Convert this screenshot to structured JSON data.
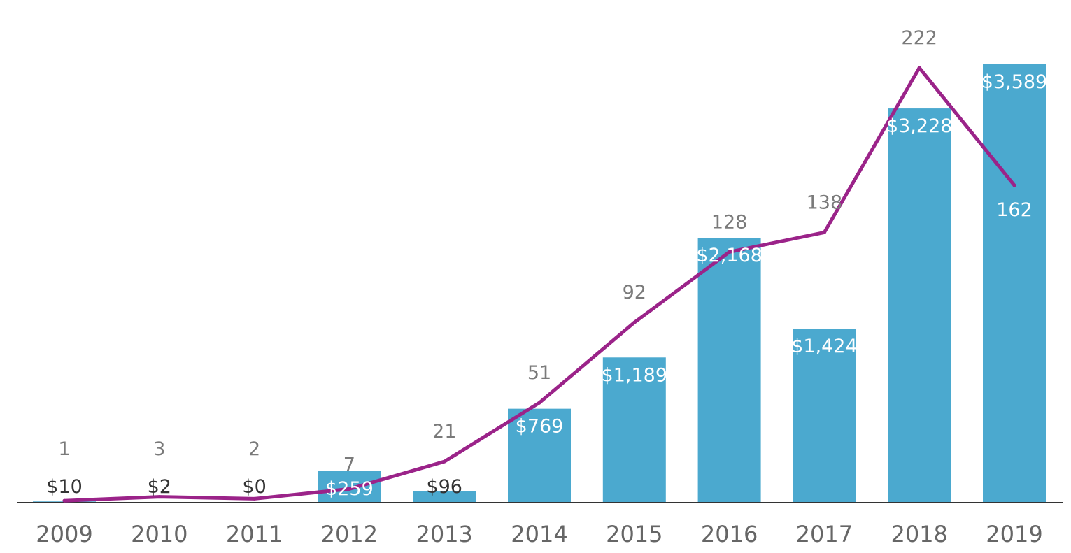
{
  "chart_data": {
    "type": "bar",
    "categories": [
      "2009",
      "2010",
      "2011",
      "2012",
      "2013",
      "2014",
      "2015",
      "2016",
      "2017",
      "2018",
      "2019"
    ],
    "series": [
      {
        "type": "bar",
        "values": [
          10,
          2,
          0,
          259,
          96,
          769,
          1189,
          2168,
          1424,
          3228,
          3589
        ],
        "data_labels": [
          "$10",
          "$2",
          "$0",
          "$259",
          "$96",
          "$769",
          "$1,189",
          "$2,168",
          "$1,424",
          "$3,228",
          "$3,589"
        ],
        "color": "#4ba9cf"
      },
      {
        "type": "line",
        "values": [
          1,
          3,
          2,
          7,
          21,
          51,
          92,
          128,
          138,
          222,
          162
        ],
        "data_labels": [
          "1",
          "3",
          "2",
          "7",
          "21",
          "51",
          "92",
          "128",
          "138",
          "222",
          "162"
        ],
        "color": "#9b2389"
      }
    ],
    "title": "",
    "xlabel": "",
    "ylabel": "",
    "grid": false,
    "legend": "none",
    "axis_color": "#333333",
    "tick_label_color": "#666666"
  }
}
